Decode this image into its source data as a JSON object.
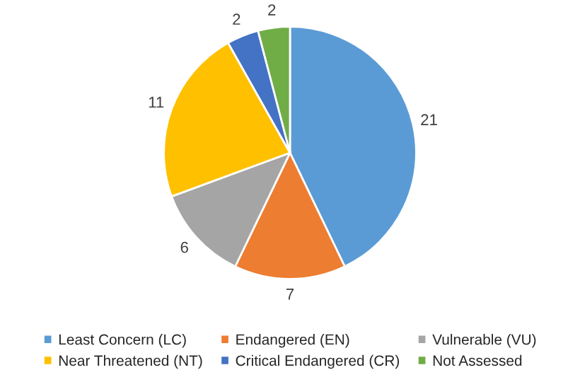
{
  "chart_data": {
    "type": "pie",
    "categories": [
      "Least Concern (LC)",
      "Endangered (EN)",
      "Vulnerable (VU)",
      "Near Threatened (NT)",
      "Critical Endangered (CR)",
      "Not Assessed"
    ],
    "values": [
      21,
      7,
      6,
      11,
      2,
      2
    ],
    "colors": [
      "#5b9bd5",
      "#ed7d31",
      "#a5a5a5",
      "#ffc000",
      "#4472c4",
      "#70ad47"
    ],
    "data_labels": true,
    "legend": "bottom"
  }
}
